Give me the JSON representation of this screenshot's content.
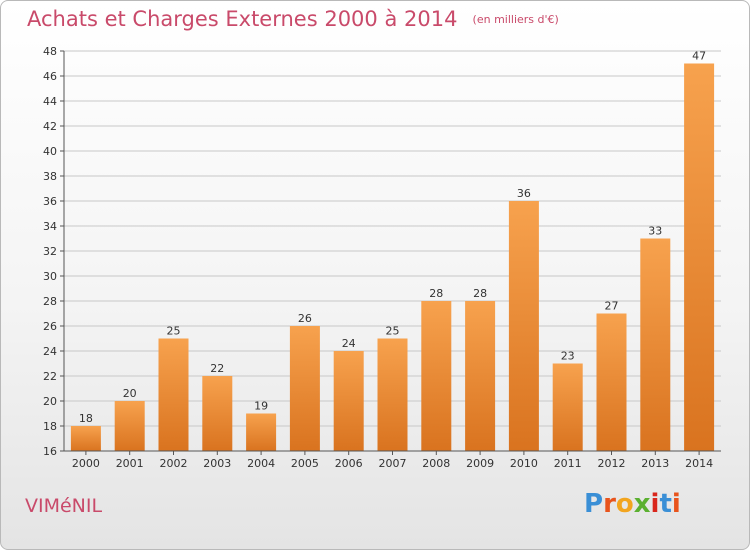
{
  "title": "Achats et Charges Externes 2000 à 2014",
  "subtitle": "(en milliers d'€)",
  "commune": "VIMéNIL",
  "brand": {
    "letters": [
      "P",
      "r",
      "o",
      "x",
      "i",
      "t",
      "i"
    ],
    "colors": [
      "#3a8fd6",
      "#e8541c",
      "#f2a51f",
      "#5bb030",
      "#d9261c",
      "#3a8fd6",
      "#e8541c"
    ]
  },
  "colors": {
    "bar_light": "#f7a24e",
    "bar_dark": "#d9731f",
    "axis": "#555555",
    "grid": "#c8c8c8",
    "label": "#333333"
  },
  "chart_data": {
    "type": "bar",
    "categories": [
      "2000",
      "2001",
      "2002",
      "2003",
      "2004",
      "2005",
      "2006",
      "2007",
      "2008",
      "2009",
      "2010",
      "2011",
      "2012",
      "2013",
      "2014"
    ],
    "values": [
      18,
      20,
      25,
      22,
      19,
      26,
      24,
      25,
      28,
      28,
      36,
      23,
      27,
      33,
      47
    ],
    "ylim": [
      16,
      48
    ],
    "yticks": [
      16,
      18,
      20,
      22,
      24,
      26,
      28,
      30,
      32,
      34,
      36,
      38,
      40,
      42,
      44,
      46,
      48
    ],
    "grid": true,
    "data_labels": true
  }
}
